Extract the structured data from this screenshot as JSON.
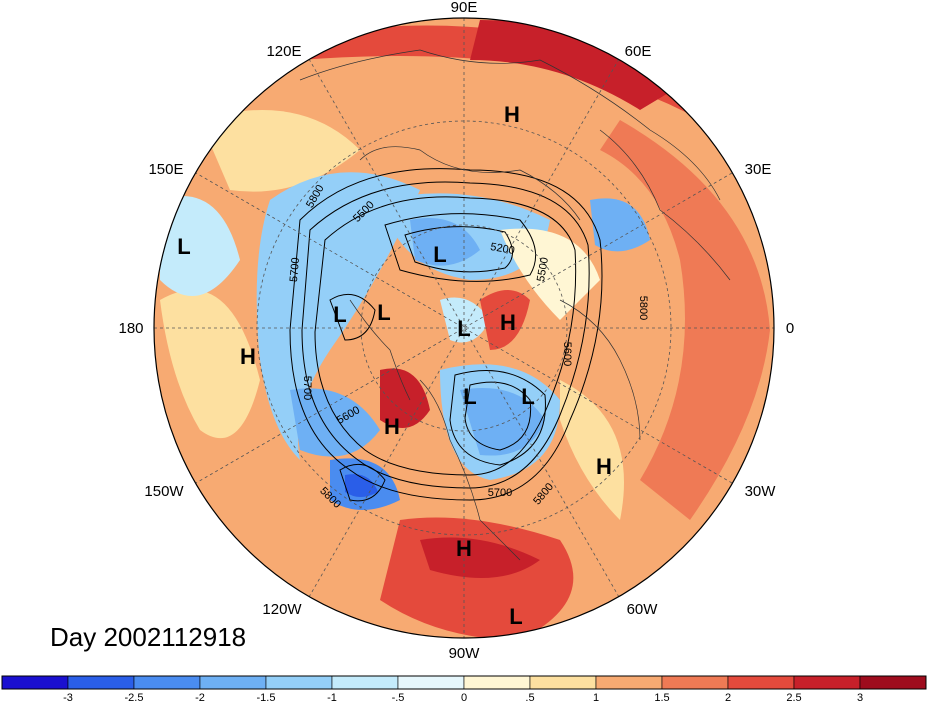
{
  "title": "Day 2002112918",
  "projection": "north-polar-stereographic",
  "longitude_labels": [
    {
      "text": "90E",
      "lon_deg": 90
    },
    {
      "text": "60E",
      "lon_deg": 60
    },
    {
      "text": "30E",
      "lon_deg": 30
    },
    {
      "text": "0",
      "lon_deg": 0
    },
    {
      "text": "30W",
      "lon_deg": -30
    },
    {
      "text": "60W",
      "lon_deg": -60
    },
    {
      "text": "90W",
      "lon_deg": -90
    },
    {
      "text": "120W",
      "lon_deg": -120
    },
    {
      "text": "150W",
      "lon_deg": -150
    },
    {
      "text": "180",
      "lon_deg": 180
    },
    {
      "text": "150E",
      "lon_deg": 150
    },
    {
      "text": "120E",
      "lon_deg": 120
    }
  ],
  "pressure_systems": [
    {
      "type": "H",
      "text": "H",
      "region": "central Asia"
    },
    {
      "type": "L",
      "text": "L",
      "region": "northern Siberia"
    },
    {
      "type": "L",
      "text": "L",
      "region": "Pacific north-west"
    },
    {
      "type": "L",
      "text": "L",
      "region": "East Siberian Sea"
    },
    {
      "type": "L",
      "text": "L",
      "region": "North Pole"
    },
    {
      "type": "H",
      "text": "H",
      "region": "Greenland Sea"
    },
    {
      "type": "L",
      "text": "L",
      "region": "Canadian Arctic"
    },
    {
      "type": "L",
      "text": "L",
      "region": "Hudson Bay"
    },
    {
      "type": "H",
      "text": "H",
      "region": "Alaska / Yukon"
    },
    {
      "type": "H",
      "text": "H",
      "region": "Bering Sea"
    },
    {
      "type": "H",
      "text": "H",
      "region": "North Atlantic"
    },
    {
      "type": "H",
      "text": "H",
      "region": "Gulf of Mexico"
    },
    {
      "type": "L",
      "text": "L",
      "region": "South America"
    },
    {
      "type": "L",
      "text": "L",
      "region": "western Pacific"
    }
  ],
  "contour_labels": [
    "5800",
    "5500",
    "5200",
    "5500",
    "5800",
    "5700",
    "5600",
    "5700",
    "5600",
    "5800",
    "5700",
    "5800"
  ],
  "colorbar": {
    "ticks": [
      "-3",
      "-2.5",
      "-2",
      "-1.5",
      "-1",
      "-.5",
      "0",
      ".5",
      "1",
      "1.5",
      "2",
      "2.5",
      "3"
    ],
    "colors": [
      "#1a10d0",
      "#2a5ee8",
      "#4a8cf0",
      "#6eb0f4",
      "#94cff8",
      "#c4ebfb",
      "#e6f7fc",
      "#fff6d4",
      "#fde0a0",
      "#f7aa72",
      "#ef7a55",
      "#e44a3c",
      "#c7202a",
      "#9e0c1d"
    ]
  },
  "colors": {
    "land_outline": "#333333",
    "contour": "#000000",
    "gridline": "#555555"
  }
}
